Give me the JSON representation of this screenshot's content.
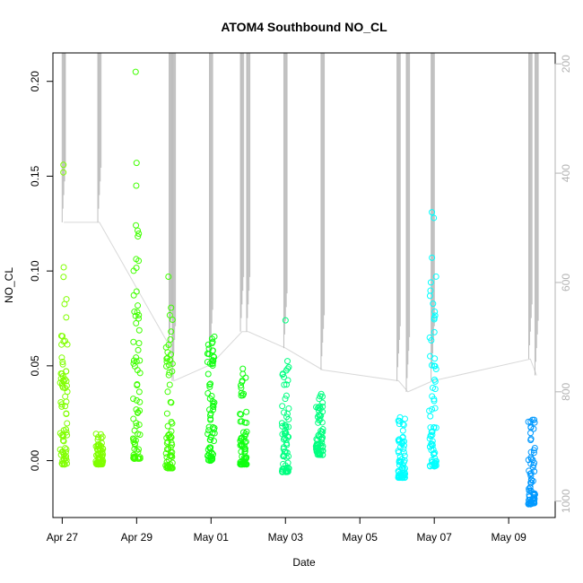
{
  "chart_data": {
    "type": "scatter",
    "title": "ATOM4 Southbound NO_CL",
    "xlabel": "Date",
    "ylabel": "NO_CL",
    "xlim": [
      "2016-04-26T18:00",
      "2016-05-10T06:00"
    ],
    "ylim": [
      -0.03,
      0.215
    ],
    "x_ticks": [
      "Apr 27",
      "Apr 29",
      "May 01",
      "May 03",
      "May 05",
      "May 07",
      "May 09"
    ],
    "y_ticks": [
      "0.00",
      "0.05",
      "0.10",
      "0.15",
      "0.20"
    ],
    "right_axis": {
      "color": "#b3b3b3",
      "range": [
        180,
        1030
      ],
      "ticks": [
        "200",
        "400",
        "600",
        "800",
        "1000"
      ]
    },
    "grid": false,
    "series": [
      {
        "color": "#80ff00",
        "clusters": [
          {
            "x": "2016-04-27T01:00",
            "y_min": -0.002,
            "y_max": 0.103,
            "outliers": [
              0.152,
              0.156
            ]
          },
          {
            "x": "2016-04-28T00:00",
            "y_min": -0.002,
            "y_max": 0.015,
            "outliers": []
          }
        ]
      },
      {
        "color": "#40ff00",
        "clusters": [
          {
            "x": "2016-04-29T00:00",
            "y_min": 0.001,
            "y_max": 0.126,
            "outliers": [
              0.145,
              0.157,
              0.205
            ]
          },
          {
            "x": "2016-04-29T21:00",
            "y_min": -0.004,
            "y_max": 0.081,
            "outliers": [
              0.097
            ]
          }
        ]
      },
      {
        "color": "#10ff10",
        "clusters": [
          {
            "x": "2016-05-01T00:00",
            "y_min": 0.0,
            "y_max": 0.067,
            "outliers": []
          },
          {
            "x": "2016-05-01T21:00",
            "y_min": -0.002,
            "y_max": 0.051,
            "outliers": []
          }
        ]
      },
      {
        "color": "#00ff80",
        "clusters": [
          {
            "x": "2016-05-03T00:00",
            "y_min": -0.006,
            "y_max": 0.053,
            "outliers": [
              0.074
            ]
          },
          {
            "x": "2016-05-03T22:00",
            "y_min": 0.003,
            "y_max": 0.038,
            "outliers": []
          }
        ]
      },
      {
        "color": "#00ffff",
        "clusters": [
          {
            "x": "2016-05-06T03:00",
            "y_min": -0.009,
            "y_max": 0.025,
            "outliers": []
          },
          {
            "x": "2016-05-06T23:00",
            "y_min": -0.003,
            "y_max": 0.098,
            "outliers": [
              0.107,
              0.128,
              0.131
            ]
          }
        ]
      },
      {
        "color": "#0099ff",
        "clusters": [
          {
            "x": "2016-05-09T15:00",
            "y_min": -0.023,
            "y_max": 0.022,
            "outliers": []
          }
        ]
      }
    ],
    "right_axis_series": {
      "color": "#bebebe",
      "columns": [
        {
          "x": "2016-04-27T01:00",
          "y_min": 490,
          "y_max": 180
        },
        {
          "x": "2016-04-28T00:00",
          "y_min": 490,
          "y_max": 180
        },
        {
          "x": "2016-04-29T22:00",
          "y_min": 720,
          "y_max": 180
        },
        {
          "x": "2016-04-30T00:00",
          "y_min": 780,
          "y_max": 180
        },
        {
          "x": "2016-05-01T00:00",
          "y_min": 750,
          "y_max": 180
        },
        {
          "x": "2016-05-01T20:00",
          "y_min": 690,
          "y_max": 180
        },
        {
          "x": "2016-05-02T00:00",
          "y_min": 690,
          "y_max": 180
        },
        {
          "x": "2016-05-03T00:00",
          "y_min": 720,
          "y_max": 180
        },
        {
          "x": "2016-05-04T00:00",
          "y_min": 760,
          "y_max": 180
        },
        {
          "x": "2016-05-06T01:00",
          "y_min": 780,
          "y_max": 180
        },
        {
          "x": "2016-05-06T07:00",
          "y_min": 800,
          "y_max": 180
        },
        {
          "x": "2016-05-06T23:00",
          "y_min": 780,
          "y_max": 180
        },
        {
          "x": "2016-05-09T14:00",
          "y_min": 740,
          "y_max": 180
        },
        {
          "x": "2016-05-09T18:00",
          "y_min": 770,
          "y_max": 180
        }
      ]
    }
  }
}
